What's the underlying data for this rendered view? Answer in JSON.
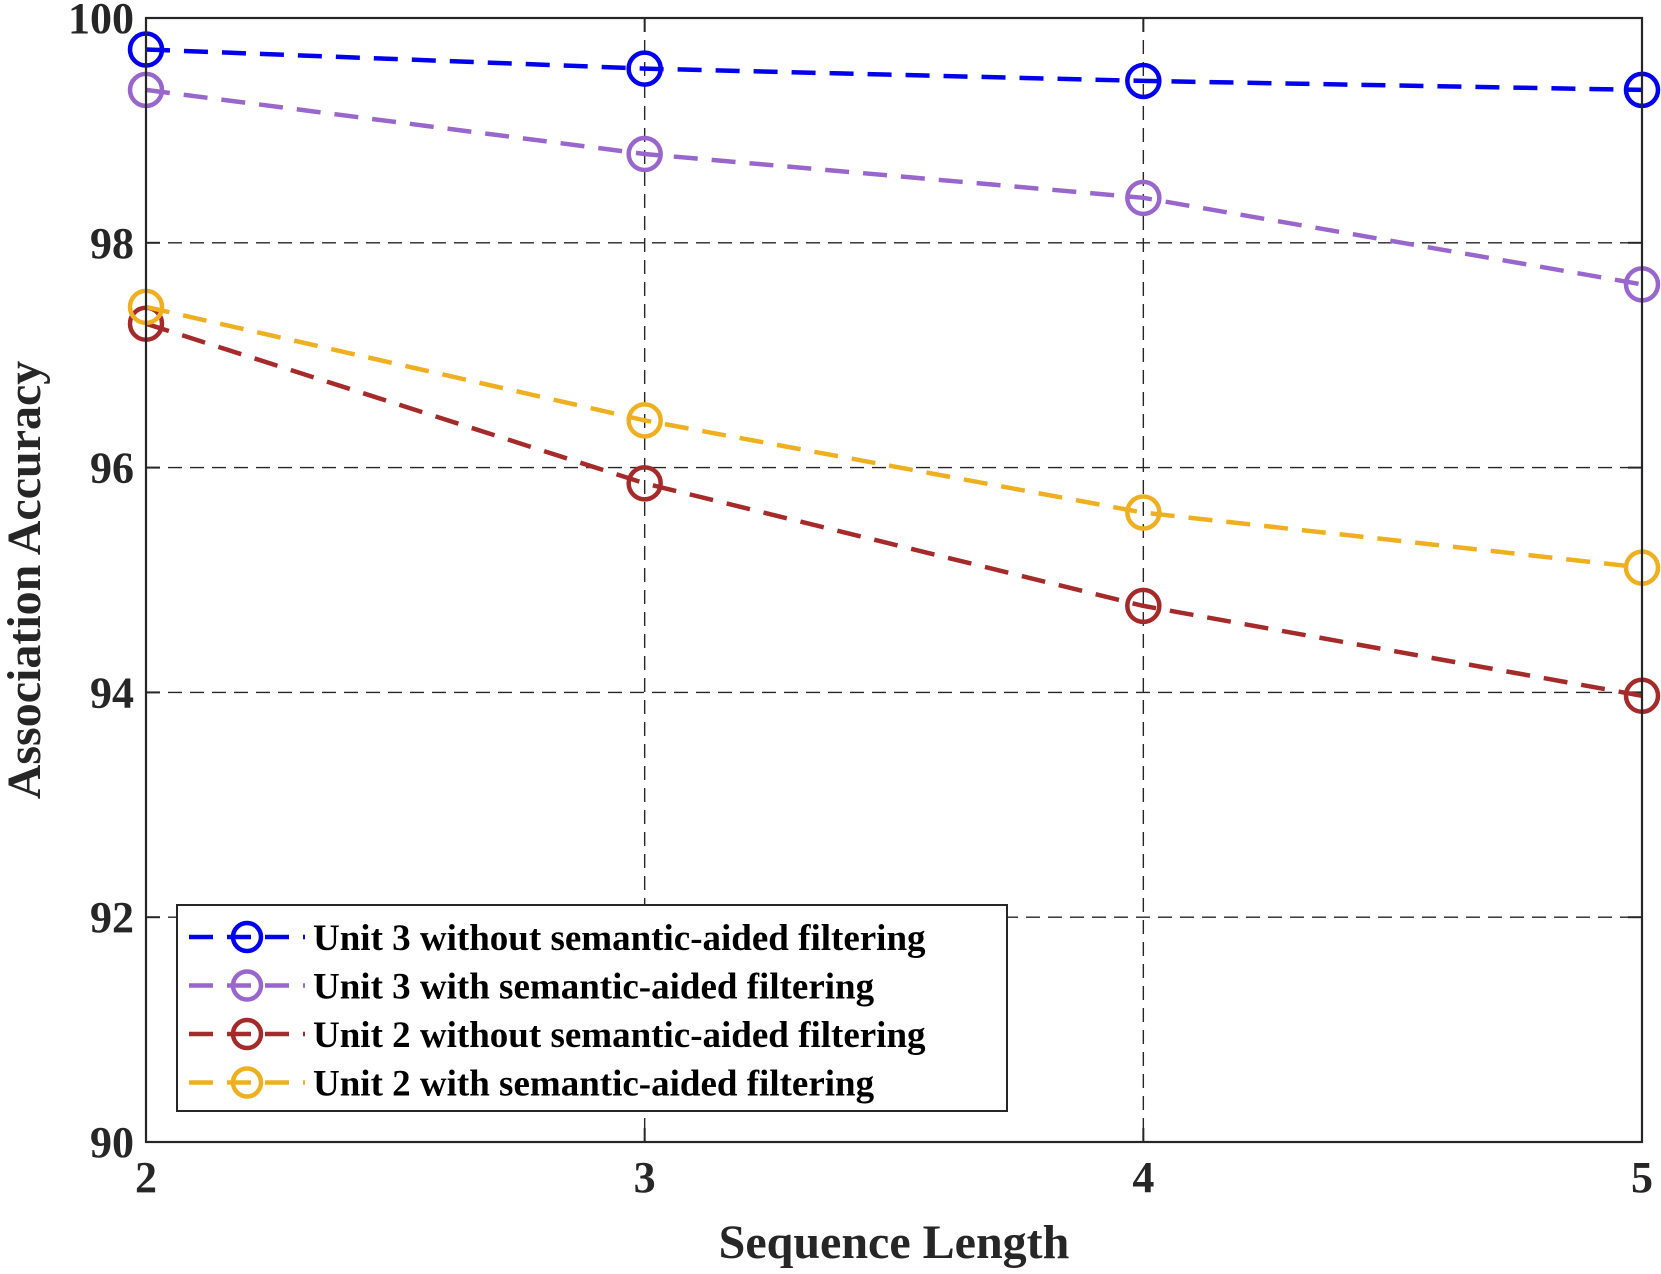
{
  "chart_data": {
    "type": "line",
    "title": "",
    "xlabel": "Sequence Length",
    "ylabel": "Association Accuracy",
    "x": [
      2,
      3,
      4,
      5
    ],
    "xlim": [
      2,
      5
    ],
    "ylim": [
      90,
      100
    ],
    "xticks": [
      2,
      3,
      4,
      5
    ],
    "yticks": [
      90,
      92,
      94,
      96,
      98,
      100
    ],
    "grid": true,
    "legend_position": "bottom-left",
    "series": [
      {
        "name": "Unit 3 without semantic-aided filtering",
        "values": [
          99.72,
          99.55,
          99.44,
          99.36
        ],
        "color": "#0000ee",
        "marker": "circle",
        "linestyle": "dashed"
      },
      {
        "name": "Unit 3 with semantic-aided filtering",
        "values": [
          99.36,
          98.79,
          98.4,
          97.63
        ],
        "color": "#9966cc",
        "marker": "circle",
        "linestyle": "dashed"
      },
      {
        "name": "Unit 2 without semantic-aided filtering",
        "values": [
          97.28,
          95.86,
          94.77,
          93.97
        ],
        "color": "#a52a2a",
        "marker": "circle",
        "linestyle": "dashed"
      },
      {
        "name": "Unit 2 with semantic-aided filtering",
        "values": [
          97.43,
          96.42,
          95.6,
          95.11
        ],
        "color": "#eeb020",
        "marker": "circle",
        "linestyle": "dashed"
      }
    ]
  }
}
